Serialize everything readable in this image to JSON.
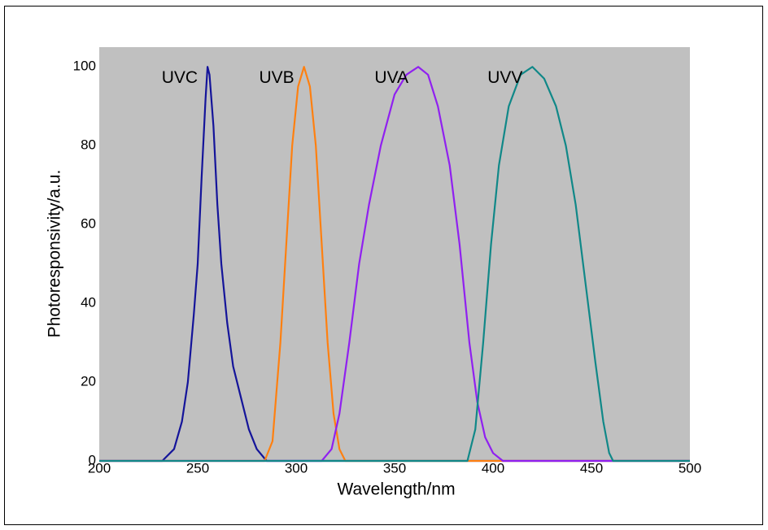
{
  "chart_data": {
    "type": "line",
    "x_label": "Wavelength/nm",
    "y_label": "Photoresponsivity/a.u.",
    "xlim": [
      200,
      500
    ],
    "xticks": [
      200,
      250,
      300,
      350,
      400,
      450,
      500
    ],
    "ylim": [
      0,
      105
    ],
    "yticks": [
      0,
      20,
      40,
      60,
      80,
      100
    ],
    "background": "#c0c0c0",
    "series": [
      {
        "name": "UVC",
        "color": "#14149a",
        "x": [
          200,
          232,
          238,
          242,
          245,
          248,
          250,
          252,
          254,
          255,
          256,
          258,
          260,
          262,
          265,
          268,
          272,
          276,
          280,
          285,
          500
        ],
        "values": [
          0,
          0,
          3,
          10,
          20,
          37,
          50,
          72,
          92,
          100,
          98,
          85,
          65,
          50,
          35,
          24,
          16,
          8,
          3,
          0,
          0
        ]
      },
      {
        "name": "UVB",
        "color": "#ff8010",
        "x": [
          200,
          284,
          288,
          292,
          295,
          298,
          301,
          304,
          307,
          310,
          313,
          316,
          319,
          322,
          325,
          500
        ],
        "values": [
          0,
          0,
          5,
          30,
          55,
          80,
          95,
          100,
          95,
          80,
          55,
          30,
          12,
          3,
          0,
          0
        ]
      },
      {
        "name": "UVA",
        "color": "#9020f0",
        "x": [
          200,
          313,
          318,
          322,
          327,
          332,
          337,
          343,
          350,
          356,
          362,
          367,
          372,
          378,
          383,
          388,
          392,
          396,
          400,
          405,
          500
        ],
        "values": [
          0,
          0,
          3,
          12,
          30,
          50,
          65,
          80,
          93,
          98,
          100,
          98,
          90,
          75,
          55,
          30,
          15,
          6,
          2,
          0,
          0
        ]
      },
      {
        "name": "UVV",
        "color": "#108888",
        "x": [
          200,
          387,
          391,
          395,
          399,
          403,
          408,
          414,
          420,
          426,
          432,
          437,
          442,
          447,
          452,
          456,
          459,
          461,
          500
        ],
        "values": [
          0,
          0,
          8,
          30,
          55,
          75,
          90,
          98,
          100,
          97,
          90,
          80,
          65,
          45,
          25,
          10,
          2,
          0,
          0
        ]
      }
    ]
  }
}
